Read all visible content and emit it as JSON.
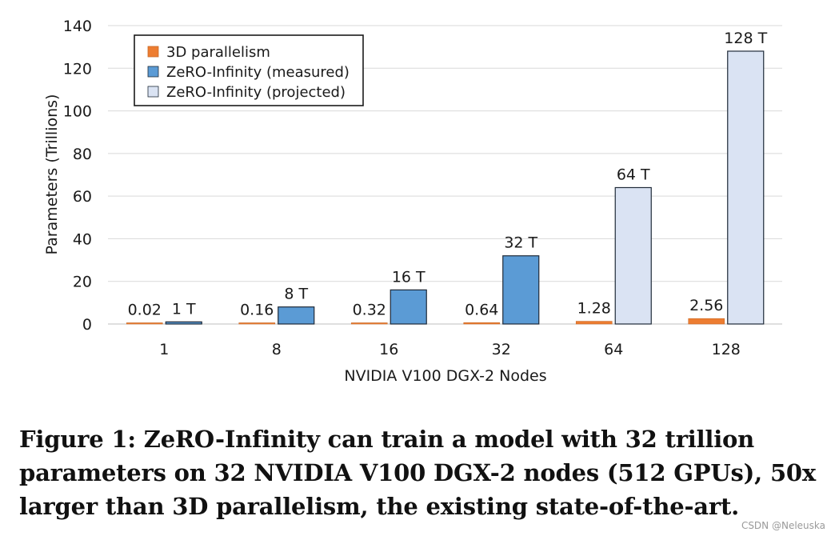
{
  "chart_data": {
    "type": "bar",
    "title": "",
    "xlabel": "NVIDIA V100 DGX-2 Nodes",
    "ylabel": "Parameters (Trillions)",
    "ylim": [
      0,
      140
    ],
    "yticks": [
      0,
      20,
      40,
      60,
      80,
      100,
      120,
      140
    ],
    "grid": true,
    "legend_position": "top-left",
    "categories": [
      "1",
      "8",
      "16",
      "32",
      "64",
      "128"
    ],
    "series": [
      {
        "name": "3D parallelism",
        "color": "#ED7D31",
        "values": [
          0.02,
          0.16,
          0.32,
          0.64,
          1.28,
          2.56
        ],
        "labels": [
          "0.02",
          "0.16",
          "0.32",
          "0.64",
          "1.28",
          "2.56"
        ]
      },
      {
        "name": "ZeRO-Infinity (measured)",
        "color": "#5B9BD5",
        "values": [
          1,
          8,
          16,
          32,
          null,
          null
        ],
        "labels": [
          "1 T",
          "8 T",
          "16 T",
          "32 T",
          null,
          null
        ]
      },
      {
        "name": "ZeRO-Infinity (projected)",
        "color": "#DAE3F3",
        "values": [
          null,
          null,
          null,
          null,
          64,
          128
        ],
        "labels": [
          null,
          null,
          null,
          null,
          "64 T",
          "128 T"
        ]
      }
    ]
  },
  "caption": "Figure 1: ZeRO-Infinity can train a model with 32 trillion parameters on 32 NVIDIA V100 DGX-2 nodes (512 GPUs), 50x larger than 3D parallelism, the existing state-of-the-art.",
  "watermark": "CSDN @Neleuska"
}
